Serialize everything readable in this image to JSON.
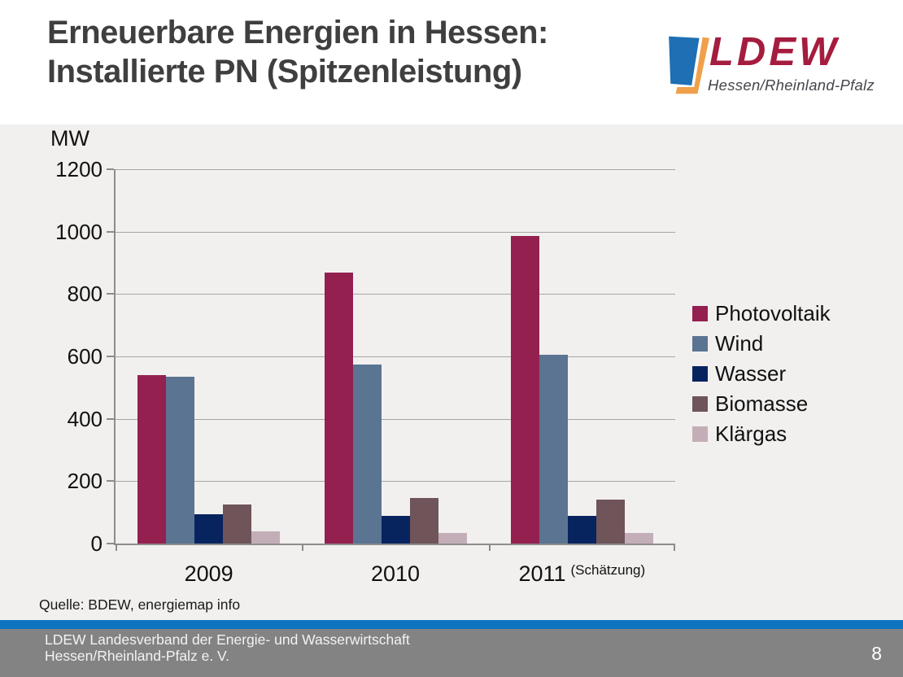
{
  "slide": {
    "title_line1": "Erneuerbare Energien in Hessen:",
    "title_line2": "Installierte PN (Spitzenleistung)"
  },
  "logo": {
    "word": "LDEW",
    "subtitle": "Hessen/Rheinland-Pfalz",
    "colors": {
      "blue": "#1e6fb4",
      "orange": "#f0a04a",
      "red": "#a51c3f"
    }
  },
  "chart_data": {
    "type": "bar",
    "title": "",
    "unit_label": "MW",
    "xlabel": "",
    "ylabel": "MW",
    "ylim": [
      0,
      1200
    ],
    "ytick_step": 200,
    "grid": true,
    "legend_position": "right",
    "categories": [
      {
        "label": "2009",
        "suffix": ""
      },
      {
        "label": "2010",
        "suffix": ""
      },
      {
        "label": "2011",
        "suffix": "(Schätzung)"
      }
    ],
    "series": [
      {
        "name": "Photovoltaik",
        "color": "#94204f",
        "values": [
          540,
          870,
          985
        ]
      },
      {
        "name": "Wind",
        "color": "#5a7492",
        "values": [
          535,
          575,
          605
        ]
      },
      {
        "name": "Wasser",
        "color": "#08245f",
        "values": [
          95,
          90,
          90
        ]
      },
      {
        "name": "Biomasse",
        "color": "#6f545a",
        "values": [
          125,
          145,
          140
        ]
      },
      {
        "name": "Klärgas",
        "color": "#c3aeb7",
        "values": [
          40,
          35,
          35
        ]
      }
    ]
  },
  "source": {
    "text": "Quelle: BDEW, energiemap info"
  },
  "footer": {
    "line1": "LDEW Landesverband der Energie- und Wasserwirtschaft",
    "line2": "Hessen/Rheinland-Pfalz  e. V.",
    "page": "8"
  }
}
